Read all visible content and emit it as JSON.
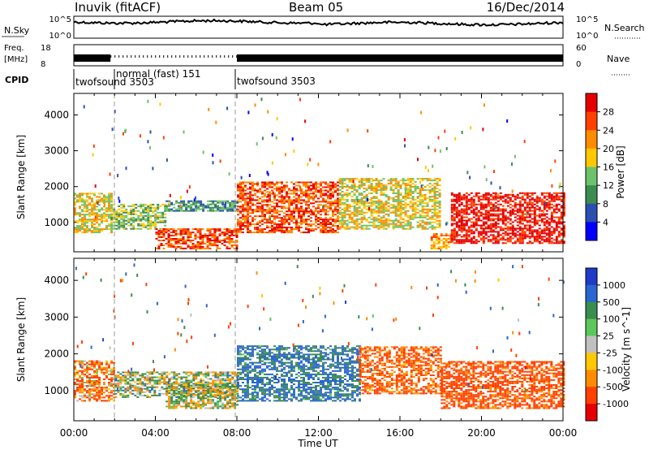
{
  "header": {
    "station": "Inuvik (fitACF)",
    "beam": "Beam 05",
    "date": "16/Dec/2014"
  },
  "noise_panel": {
    "left_label": "N.Sky",
    "right_label": "N.Search",
    "left_ticks": [
      "10^5",
      "10^0"
    ],
    "right_ticks": [
      "10^5",
      "10^0"
    ]
  },
  "freq_panel": {
    "left_label_line1": "Freq.",
    "left_label_line2": "[MHz]",
    "left_ticks": [
      "18",
      "8"
    ],
    "right_label": "Nave",
    "right_ticks": [
      "60",
      "0"
    ]
  },
  "cpid": {
    "label": "CPID",
    "segments": [
      {
        "name": "twofsound 3503",
        "start_hour": 0.0,
        "end_hour": 1.8
      },
      {
        "name": "normal (fast) 151",
        "start_hour": 1.8,
        "end_hour": 8.0
      },
      {
        "name": "twofsound 3503",
        "start_hour": 8.0,
        "end_hour": 24.0
      }
    ]
  },
  "x_axis": {
    "label": "Time UT",
    "ticks": [
      "00:00",
      "04:00",
      "08:00",
      "12:00",
      "16:00",
      "20:00",
      "00:00"
    ]
  },
  "chart_data": [
    {
      "type": "heatmap",
      "name": "power_panel",
      "ylabel": "Slant Range [km]",
      "yticks": [
        1000,
        2000,
        3000,
        4000
      ],
      "ylim": [
        180,
        4600
      ],
      "xlim_hours": [
        0,
        24
      ],
      "colorbar": {
        "label": "Power [dB]",
        "ticks": [
          "28",
          "24",
          "20",
          "16",
          "12",
          "8",
          "4"
        ],
        "colors": [
          "#e60000",
          "#ff4000",
          "#ff8c00",
          "#ffc800",
          "#6cc36c",
          "#3c8c50",
          "#2a4fb0",
          "#0000ff"
        ]
      },
      "regions": [
        {
          "t0": 0.0,
          "t1": 1.8,
          "r0": 700,
          "r1": 1800,
          "level": 4
        },
        {
          "t0": 1.8,
          "t1": 4.5,
          "r0": 800,
          "r1": 1500,
          "level": 3
        },
        {
          "t0": 4.0,
          "t1": 8.0,
          "r0": 250,
          "r1": 800,
          "level": 6
        },
        {
          "t0": 4.5,
          "t1": 8.0,
          "r0": 1300,
          "r1": 1600,
          "level": 2
        },
        {
          "t0": 8.0,
          "t1": 13.0,
          "r0": 700,
          "r1": 2100,
          "level": 6
        },
        {
          "t0": 13.0,
          "t1": 18.0,
          "r0": 800,
          "r1": 2200,
          "level": 4
        },
        {
          "t0": 17.5,
          "t1": 18.5,
          "r0": 250,
          "r1": 700,
          "level": 5
        },
        {
          "t0": 18.5,
          "t1": 24.0,
          "r0": 400,
          "r1": 1800,
          "level": 7
        }
      ]
    },
    {
      "type": "heatmap",
      "name": "velocity_panel",
      "ylabel": "Slant Range [km]",
      "yticks": [
        1000,
        2000,
        3000,
        4000
      ],
      "ylim": [
        180,
        4600
      ],
      "xlim_hours": [
        0,
        24
      ],
      "colorbar": {
        "label": "Velocity [m s^-1]",
        "ticks": [
          "1000",
          "500",
          "100",
          "25",
          "-25",
          "-100",
          "-500",
          "-1000"
        ],
        "colors": [
          "#1e3cc8",
          "#2a66d0",
          "#3c8c50",
          "#5ac85a",
          "#c0c0c0",
          "#ffc800",
          "#ff8c00",
          "#ff4000",
          "#e60000"
        ]
      },
      "regions": [
        {
          "t0": 0.0,
          "t1": 2.0,
          "r0": 700,
          "r1": 1800,
          "velocity": -200
        },
        {
          "t0": 2.0,
          "t1": 8.0,
          "r0": 800,
          "r1": 1500,
          "velocity": 50
        },
        {
          "t0": 4.5,
          "t1": 8.0,
          "r0": 500,
          "r1": 1200,
          "velocity": 0
        },
        {
          "t0": 8.0,
          "t1": 14.0,
          "r0": 700,
          "r1": 2200,
          "velocity": 300
        },
        {
          "t0": 14.0,
          "t1": 18.0,
          "r0": 900,
          "r1": 2200,
          "velocity": -300
        },
        {
          "t0": 18.0,
          "t1": 24.0,
          "r0": 500,
          "r1": 1800,
          "velocity": -400
        }
      ]
    }
  ]
}
